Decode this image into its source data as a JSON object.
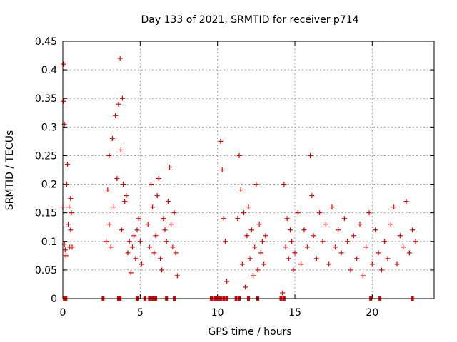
{
  "chart_data": {
    "type": "scatter",
    "title": "Day 133 of 2021, SRMTID for receiver p714",
    "xlabel": "GPS time / hours",
    "ylabel": "SRMTID / TECUs",
    "xlim": [
      0,
      24
    ],
    "ylim": [
      0,
      0.45
    ],
    "xticks": [
      0,
      5,
      10,
      15,
      20
    ],
    "xtick_labels": [
      "0",
      "5",
      "10",
      "15",
      "20"
    ],
    "yticks": [
      0,
      0.05,
      0.1,
      0.15,
      0.2,
      0.25,
      0.3,
      0.35,
      0.4,
      0.45
    ],
    "ytick_labels": [
      "0",
      "0.05",
      "0.1",
      "0.15",
      "0.2",
      "0.25",
      "0.3",
      "0.35",
      "0.4",
      "0.45"
    ],
    "grid": true,
    "marker": "+",
    "color": "#e00000",
    "series": [
      {
        "name": "SRMTID",
        "x": [
          0.0,
          0.05,
          0.05,
          0.1,
          0.1,
          0.15,
          0.2,
          0.25,
          0.3,
          0.35,
          0.4,
          0.45,
          0.5,
          0.5,
          0.55,
          0.6,
          2.8,
          2.9,
          3.0,
          3.0,
          3.1,
          3.2,
          3.3,
          3.4,
          3.5,
          3.6,
          3.7,
          3.75,
          3.8,
          3.85,
          3.9,
          4.0,
          4.1,
          4.2,
          4.3,
          4.4,
          4.5,
          4.6,
          4.7,
          4.8,
          4.9,
          5.0,
          5.1,
          5.5,
          5.6,
          5.7,
          5.8,
          5.9,
          6.0,
          6.1,
          6.2,
          6.3,
          6.4,
          6.5,
          6.6,
          6.7,
          6.8,
          6.9,
          7.0,
          7.1,
          7.2,
          7.3,
          7.4,
          10.2,
          10.3,
          10.4,
          10.5,
          10.6,
          11.3,
          11.4,
          11.5,
          11.6,
          11.7,
          11.8,
          11.9,
          12.0,
          12.1,
          12.2,
          12.3,
          12.4,
          12.5,
          12.6,
          12.7,
          12.8,
          12.9,
          13.0,
          13.1,
          14.2,
          14.3,
          14.4,
          14.5,
          14.6,
          14.7,
          14.8,
          14.9,
          15.0,
          15.2,
          15.4,
          15.6,
          15.8,
          16.0,
          16.1,
          16.2,
          16.4,
          16.6,
          16.8,
          17.0,
          17.2,
          17.4,
          17.6,
          17.8,
          18.0,
          18.2,
          18.4,
          18.6,
          18.8,
          19.0,
          19.2,
          19.4,
          19.6,
          19.8,
          20.0,
          20.2,
          20.4,
          20.6,
          20.8,
          21.0,
          21.2,
          21.4,
          21.6,
          21.8,
          22.0,
          22.2,
          22.4,
          22.6,
          22.8
        ],
        "y": [
          0.16,
          0.41,
          0.345,
          0.305,
          0.095,
          0.085,
          0.075,
          0.2,
          0.235,
          0.13,
          0.16,
          0.09,
          0.175,
          0.12,
          0.15,
          0.09,
          0.1,
          0.19,
          0.25,
          0.13,
          0.09,
          0.28,
          0.16,
          0.32,
          0.21,
          0.34,
          0.42,
          0.26,
          0.12,
          0.35,
          0.2,
          0.17,
          0.18,
          0.08,
          0.1,
          0.045,
          0.09,
          0.11,
          0.07,
          0.12,
          0.14,
          0.1,
          0.06,
          0.13,
          0.09,
          0.2,
          0.16,
          0.08,
          0.11,
          0.18,
          0.21,
          0.07,
          0.05,
          0.14,
          0.12,
          0.1,
          0.17,
          0.23,
          0.13,
          0.09,
          0.15,
          0.08,
          0.04,
          0.275,
          0.225,
          0.14,
          0.1,
          0.03,
          0.14,
          0.25,
          0.19,
          0.06,
          0.15,
          0.02,
          0.11,
          0.16,
          0.07,
          0.12,
          0.04,
          0.09,
          0.2,
          0.05,
          0.13,
          0.08,
          0.1,
          0.06,
          0.11,
          0.01,
          0.2,
          0.09,
          0.14,
          0.07,
          0.12,
          0.1,
          0.05,
          0.08,
          0.15,
          0.06,
          0.12,
          0.09,
          0.25,
          0.18,
          0.11,
          0.07,
          0.15,
          0.1,
          0.13,
          0.06,
          0.16,
          0.09,
          0.12,
          0.08,
          0.14,
          0.1,
          0.05,
          0.11,
          0.07,
          0.13,
          0.04,
          0.09,
          0.15,
          0.06,
          0.12,
          0.08,
          0.05,
          0.1,
          0.07,
          0.13,
          0.16,
          0.06,
          0.11,
          0.09,
          0.17,
          0.08,
          0.12,
          0.1
        ],
        "zero_markers_x": [
          0.1,
          0.2,
          2.6,
          3.6,
          3.7,
          4.8,
          5.3,
          5.6,
          5.8,
          6.0,
          6.7,
          7.2,
          9.6,
          9.8,
          10.0,
          10.2,
          10.4,
          10.6,
          11.2,
          11.4,
          12.0,
          12.6,
          14.1,
          14.3,
          19.9,
          20.5,
          22.6
        ]
      }
    ]
  }
}
